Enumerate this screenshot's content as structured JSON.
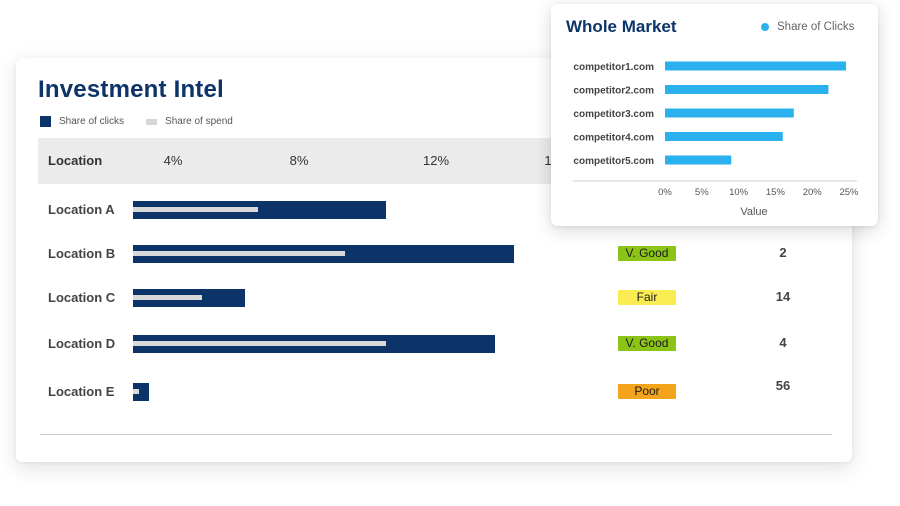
{
  "investment": {
    "title": "Investment Intel",
    "legend": {
      "clicks": "Share of clicks",
      "spend": "Share of spend"
    },
    "header_label": "Location",
    "header_ticks": [
      "4%",
      "8%",
      "12%",
      "1"
    ]
  },
  "colors": {
    "clicks": "#0d3468",
    "spend": "#d9d9d9",
    "market": "#2bb0ee",
    "v_good": "#8bc417",
    "fair": "#f9ec53",
    "poor": "#f3a41a"
  },
  "chart_data": [
    {
      "type": "bar",
      "title": "Investment Intel",
      "categories": [
        "Location A",
        "Location B",
        "Location C",
        "Location D",
        "Location E"
      ],
      "series": [
        {
          "name": "Share of clicks",
          "values": [
            8.1,
            12.2,
            3.6,
            11.6,
            0.5
          ]
        },
        {
          "name": "Share of spend",
          "values": [
            4.0,
            6.8,
            2.2,
            8.1,
            0.2
          ]
        }
      ],
      "xticks": [
        "4%",
        "8%",
        "12%"
      ],
      "ratings": [
        "",
        "V. Good",
        "Fair",
        "V. Good",
        "Poor"
      ],
      "ranks": [
        "",
        "2",
        "14",
        "4",
        "56"
      ]
    },
    {
      "type": "bar",
      "title": "Whole Market",
      "categories": [
        "competitor1.com",
        "competitor2.com",
        "competitor3.com",
        "competitor4.com",
        "competitor5.com"
      ],
      "series": [
        {
          "name": "Share of Clicks",
          "values": [
            24.6,
            22.2,
            17.5,
            16.0,
            9.0
          ]
        }
      ],
      "xlabel": "Value",
      "xlim": [
        0,
        25
      ],
      "xticks": [
        "0%",
        "5%",
        "10%",
        "15%",
        "20%",
        "25%"
      ],
      "legend": "top-right"
    }
  ]
}
